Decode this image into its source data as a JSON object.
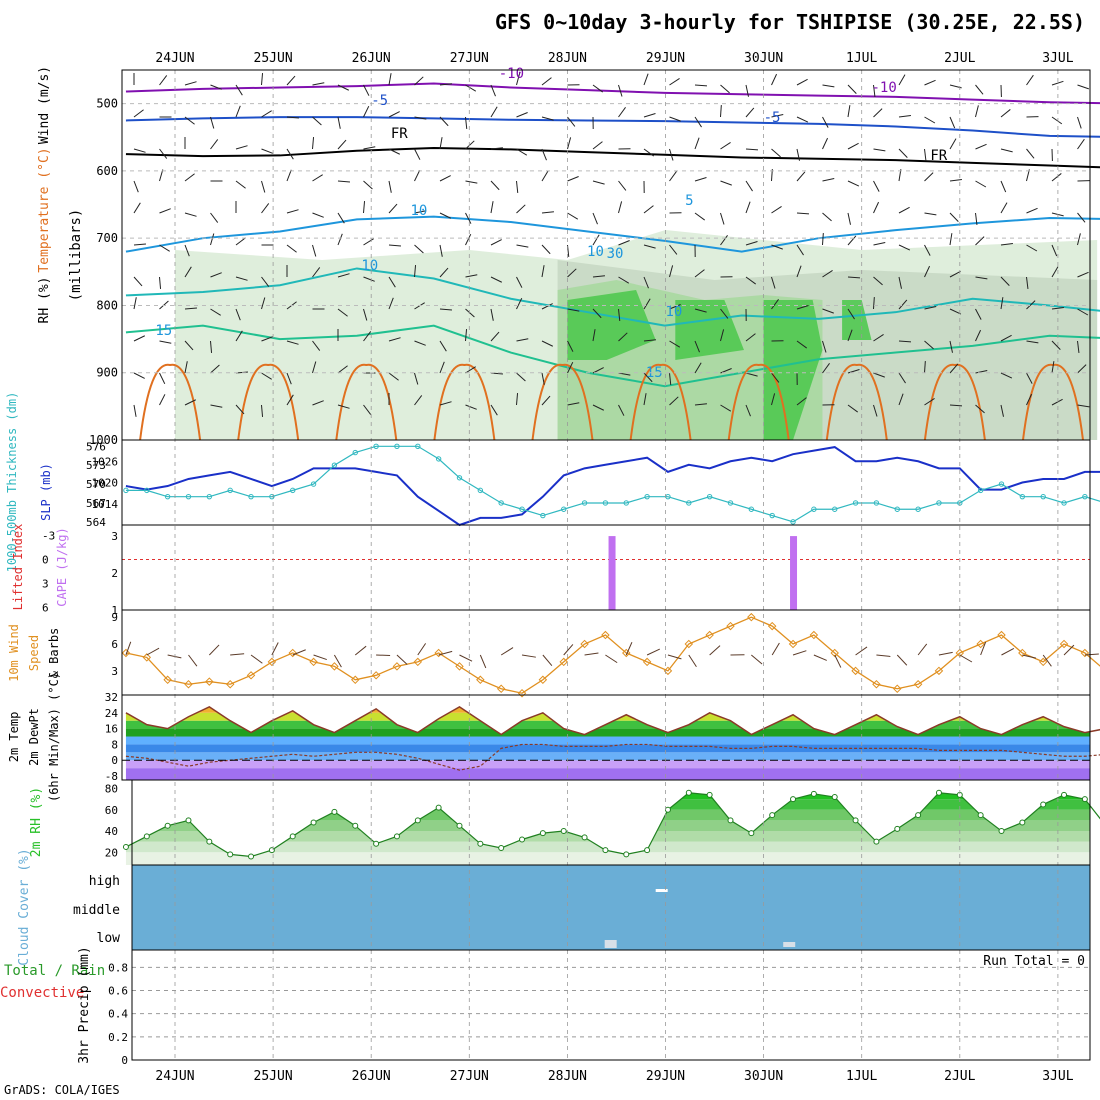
{
  "title": "GFS 0~10day 3-hourly for TSHIPISE (30.25E, 22.5S)",
  "credit": "GrADS: COLA/IGES",
  "colors": {
    "temp_warm": "#e07020",
    "temp_cold": "#1e50c8",
    "temp_vcold": "#8010b0",
    "rh_light": "#dcecd8",
    "rh_mid": "#a8d8a0",
    "rh_dark": "#50c850",
    "slp": "#1a30c8",
    "thickness": "#30b8c0",
    "cape": "#c070f0",
    "lifted": "#e03030",
    "wind10m": "#e09020",
    "cloud": "#6aaed6",
    "rh2m": "#28c028",
    "precip_label": "#e03030"
  },
  "chart_data": [
    {
      "type": "contour",
      "panel": "upper-air",
      "ylabel_parts": [
        "RH (%)",
        "Temperature (°C)",
        "Wind (m/s)"
      ],
      "ylabel2": "(millibars)",
      "y_ticks": [
        500,
        600,
        700,
        800,
        900,
        1000
      ],
      "ylim": [
        1000,
        450
      ],
      "x_ticks": [
        "24JUN",
        "25JUN",
        "26JUN",
        "27JUN",
        "28JUN",
        "29JUN",
        "30JUN",
        "1JUL",
        "2JUL",
        "3JUL"
      ],
      "contour_labels": [
        "-10",
        "-10",
        "-5",
        "-5",
        "FR",
        "FR",
        "5",
        "10",
        "10",
        "10",
        "15",
        "15",
        "10",
        "30"
      ],
      "isotherms": [
        {
          "name": "-10",
          "levels": [
            482,
            478,
            476,
            474,
            470,
            476,
            480,
            484,
            486,
            488,
            490,
            494,
            498,
            500
          ]
        },
        {
          "name": "-5",
          "levels": [
            525,
            522,
            520,
            520,
            522,
            524,
            525,
            526,
            528,
            530,
            534,
            540,
            548,
            550
          ]
        },
        {
          "name": "FR",
          "levels": [
            575,
            578,
            577,
            570,
            566,
            568,
            572,
            576,
            580,
            582,
            584,
            588,
            592,
            596
          ]
        },
        {
          "name": "5",
          "levels": [
            720,
            700,
            690,
            672,
            668,
            676,
            690,
            704,
            720,
            700,
            688,
            678,
            670,
            672
          ]
        },
        {
          "name": "10",
          "levels": [
            785,
            780,
            770,
            745,
            760,
            790,
            810,
            830,
            815,
            820,
            810,
            790,
            800,
            812
          ]
        },
        {
          "name": "15",
          "levels": [
            840,
            830,
            850,
            845,
            830,
            870,
            900,
            920,
            900,
            880,
            870,
            860,
            845,
            850
          ]
        }
      ]
    },
    {
      "type": "line",
      "panel": "slp-thickness",
      "ylabel_left": "1000-500mb Thickness (dm)",
      "ylabel_right": "SLP (mb)",
      "thickness_ticks": [
        564,
        567,
        570,
        573,
        576
      ],
      "slp_ticks": [
        1014,
        1020,
        1026
      ],
      "series": [
        {
          "name": "SLP (mb)",
          "axis": "slp",
          "values": [
            1019,
            1018,
            1019,
            1021,
            1022,
            1023,
            1021,
            1019,
            1021,
            1024,
            1024,
            1024,
            1023,
            1022,
            1016,
            1012,
            1008,
            1010,
            1010,
            1011,
            1016,
            1022,
            1024,
            1025,
            1026,
            1027,
            1023,
            1025,
            1024,
            1026,
            1027,
            1026,
            1028,
            1029,
            1030,
            1026,
            1026,
            1027,
            1026,
            1024,
            1024,
            1018,
            1018,
            1020,
            1021,
            1021,
            1023,
            1023,
            1024
          ]
        },
        {
          "name": "Thickness (dm)",
          "axis": "thickness",
          "values": [
            569,
            569,
            568,
            568,
            568,
            569,
            568,
            568,
            569,
            570,
            573,
            575,
            576,
            576,
            576,
            574,
            571,
            569,
            567,
            566,
            565,
            566,
            567,
            567,
            567,
            568,
            568,
            567,
            568,
            567,
            566,
            565,
            564,
            566,
            566,
            567,
            567,
            566,
            566,
            567,
            567,
            569,
            570,
            568,
            568,
            567,
            568,
            567,
            566
          ]
        }
      ]
    },
    {
      "type": "bar",
      "panel": "cape-li",
      "ylabel_left": "Lifted Index",
      "ylabel_right": "CAPE (J/kg)",
      "li_ticks": [
        -3,
        0,
        3,
        6
      ],
      "cape_ticks": [
        1,
        2,
        3
      ],
      "lifted_index_ref": 0,
      "bars": [
        {
          "day": 4.45,
          "cape": 3
        },
        {
          "day": 6.3,
          "cape": 3
        }
      ]
    },
    {
      "type": "line",
      "panel": "wind10m",
      "ylabel": "10m Wind Speed & Barbs (m/s)",
      "ylabel_parts": [
        "10m Wind",
        "Speed",
        "& Barbs"
      ],
      "y_ticks": [
        3,
        6,
        9
      ],
      "series": [
        {
          "name": "10m Wind Speed",
          "values": [
            5,
            4.5,
            2,
            1.5,
            1.8,
            1.5,
            2.5,
            4,
            5,
            4,
            3.5,
            2,
            2.5,
            3.5,
            4,
            5,
            3.5,
            2,
            1,
            0.5,
            2,
            4,
            6,
            7,
            5,
            4,
            3,
            6,
            7,
            8,
            9,
            8,
            6,
            7,
            5,
            3,
            1.5,
            1,
            1.5,
            3,
            5,
            6,
            7,
            5,
            4,
            6,
            5,
            3,
            2
          ]
        }
      ]
    },
    {
      "type": "area",
      "panel": "temp2m",
      "ylabel_parts": [
        "2m Temp",
        "2m DewPt",
        "(6hr Min/Max) (°C)"
      ],
      "y_ticks": [
        -8,
        0,
        8,
        16,
        24,
        32
      ],
      "series": [
        {
          "name": "2m Temp",
          "values": [
            24,
            18,
            16,
            22,
            27,
            20,
            14,
            20,
            25,
            18,
            14,
            20,
            26,
            18,
            14,
            21,
            27,
            20,
            13,
            20,
            24,
            16,
            13,
            18,
            23,
            18,
            14,
            18,
            24,
            20,
            13,
            18,
            23,
            16,
            13,
            18,
            23,
            17,
            13,
            18,
            22,
            16,
            13,
            18,
            22,
            17,
            14,
            16,
            18
          ]
        },
        {
          "name": "2m DewPt",
          "values": [
            2,
            1,
            -1,
            -3,
            -1,
            0,
            1,
            2,
            3,
            2,
            3,
            4,
            4,
            3,
            1,
            -2,
            -5,
            -3,
            6,
            8,
            8,
            7,
            7,
            7,
            8,
            8,
            7,
            7,
            7,
            6,
            6,
            7,
            7,
            6,
            6,
            6,
            6,
            6,
            6,
            5,
            5,
            5,
            5,
            4,
            3,
            2,
            2,
            3,
            4
          ]
        }
      ]
    },
    {
      "type": "area",
      "panel": "rh2m",
      "ylabel": "2m RH (%)",
      "y_ticks": [
        20,
        40,
        60,
        80
      ],
      "series": [
        {
          "name": "2m RH",
          "values": [
            25,
            35,
            45,
            50,
            30,
            18,
            16,
            22,
            35,
            48,
            58,
            45,
            28,
            35,
            50,
            62,
            45,
            28,
            24,
            32,
            38,
            40,
            34,
            22,
            18,
            22,
            60,
            76,
            74,
            50,
            38,
            55,
            70,
            75,
            72,
            50,
            30,
            42,
            55,
            76,
            74,
            55,
            40,
            48,
            65,
            74,
            70,
            45,
            30
          ]
        }
      ]
    },
    {
      "type": "heatmap",
      "panel": "cloud",
      "ylabel": "Cloud Cover (%)",
      "categories": [
        "high",
        "middle",
        "low"
      ],
      "note": "Uniform blue cover"
    },
    {
      "type": "bar",
      "panel": "precip",
      "ylabel_parts": [
        "Total / Rain",
        "Convective",
        "3hr Precip (mm)"
      ],
      "y_ticks": [
        0,
        0.2,
        0.4,
        0.6,
        0.8
      ],
      "run_total_label": "Run Total = 0",
      "values": []
    }
  ]
}
